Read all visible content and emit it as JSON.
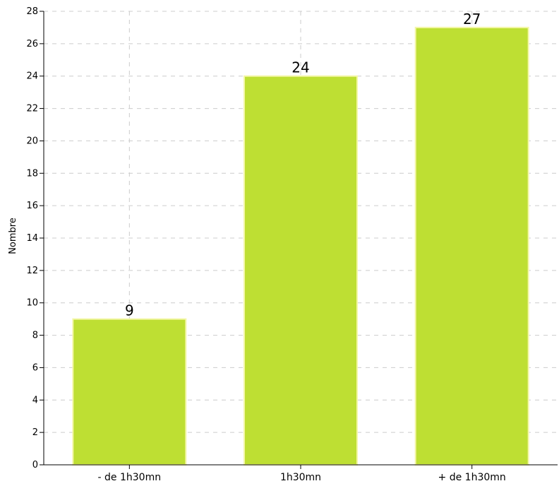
{
  "chart_data": {
    "type": "bar",
    "categories": [
      "- de 1h30mn",
      "1h30mn",
      "+ de 1h30mn"
    ],
    "values": [
      9,
      24,
      27
    ],
    "value_labels": [
      "9",
      "24",
      "27"
    ],
    "title": "",
    "xlabel": "",
    "ylabel": "Nombre",
    "ylim": [
      0,
      28
    ],
    "y_ticks": [
      0,
      2,
      4,
      6,
      8,
      10,
      12,
      14,
      16,
      18,
      20,
      22,
      24,
      26,
      28
    ],
    "grid": true,
    "grid_style": "dashed",
    "bar_color": "#bedf33",
    "bar_edge_color": "#f4f7a8"
  }
}
